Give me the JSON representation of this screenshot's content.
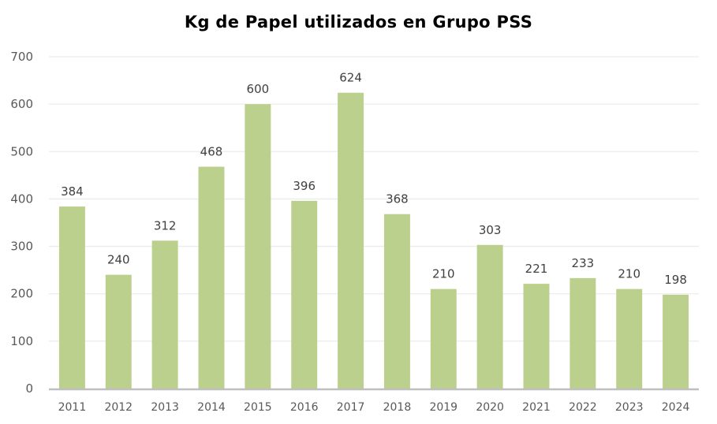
{
  "chart_data": {
    "type": "bar",
    "title": "Kg de Papel utilizados  en Grupo PSS",
    "xlabel": "",
    "ylabel": "",
    "categories": [
      "2011",
      "2012",
      "2013",
      "2014",
      "2015",
      "2016",
      "2017",
      "2018",
      "2019",
      "2020",
      "2021",
      "2022",
      "2023",
      "2024"
    ],
    "values": [
      384,
      240,
      312,
      468,
      600,
      396,
      624,
      368,
      210,
      303,
      221,
      233,
      210,
      198
    ],
    "data_labels": [
      "384",
      "240",
      "312",
      "468",
      "600",
      "396",
      "624",
      "368",
      "210",
      "303",
      "221",
      "233",
      "210",
      "198"
    ],
    "ylim": [
      0,
      700
    ],
    "yticks": [
      0,
      100,
      200,
      300,
      400,
      500,
      600,
      700
    ],
    "ytick_labels": [
      "0",
      "100",
      "200",
      "300",
      "400",
      "500",
      "600",
      "700"
    ],
    "grid": true,
    "legend": "none",
    "colors": {
      "bar": "#bcd08d",
      "grid": "#ececec",
      "axis": "#bfbfbf",
      "tick_text": "#595959",
      "label_text": "#404040"
    }
  }
}
